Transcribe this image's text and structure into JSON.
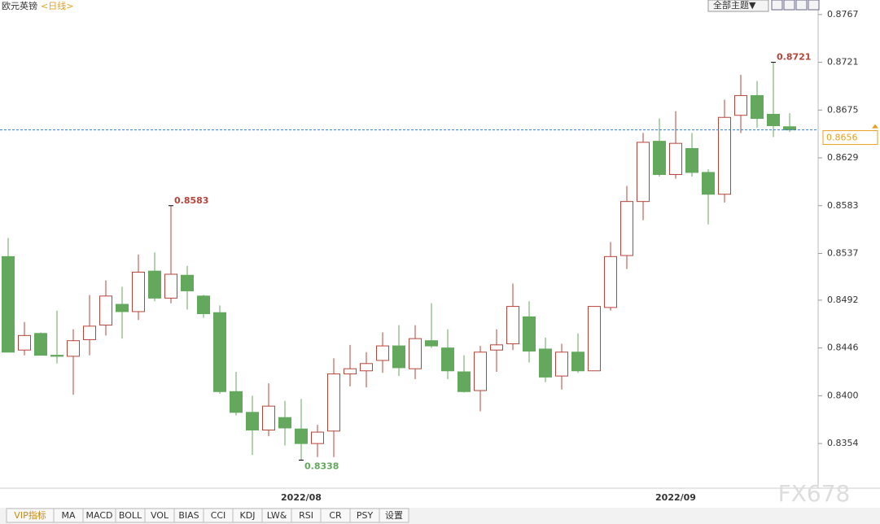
{
  "header": {
    "symbol": "欧元英镑",
    "period": "<日线>",
    "theme_button": "全部主题▼"
  },
  "tabs": [
    "VIP指标",
    "MA",
    "MACD",
    "BOLL",
    "VOL",
    "BIAS",
    "CCI",
    "KDJ",
    "LW&",
    "RSI",
    "CR",
    "PSY",
    "设置"
  ],
  "watermark": "FX678",
  "chart_data": {
    "type": "candlestick",
    "categories": [
      null,
      null,
      null,
      null,
      null,
      null,
      null,
      null,
      null,
      null,
      null,
      null,
      null,
      null,
      null,
      null,
      null,
      null,
      "2022/08",
      null,
      null,
      null,
      null,
      null,
      null,
      null,
      null,
      null,
      null,
      null,
      null,
      null,
      null,
      null,
      null,
      null,
      null,
      null,
      null,
      null,
      null,
      "2022/09",
      null,
      null,
      null,
      null,
      null,
      null,
      null
    ],
    "open": [
      0.8534,
      0.8444,
      0.846,
      0.8439,
      0.8438,
      0.8454,
      0.8468,
      0.8488,
      0.8481,
      0.852,
      0.8494,
      0.8516,
      0.8496,
      0.848,
      0.8404,
      0.8384,
      0.8367,
      0.8379,
      0.8368,
      0.8354,
      0.8366,
      0.8421,
      0.8424,
      0.8434,
      0.8448,
      0.8426,
      0.8453,
      0.8446,
      0.8423,
      0.8405,
      0.8444,
      0.845,
      0.8476,
      0.8445,
      0.8419,
      0.8442,
      0.8424,
      0.8485,
      0.8535,
      0.8587,
      0.8645,
      0.8613,
      0.8638,
      0.8615,
      0.8594,
      0.867,
      0.8689,
      0.8671,
      0.8659
    ],
    "high": [
      0.8552,
      0.8471,
      0.8461,
      0.8482,
      0.8464,
      0.8497,
      0.8511,
      0.8505,
      0.8536,
      0.8538,
      0.8583,
      0.8525,
      0.8497,
      0.8487,
      0.8423,
      0.84,
      0.8412,
      0.8395,
      0.8397,
      0.8372,
      0.8436,
      0.8449,
      0.8442,
      0.8461,
      0.8468,
      0.8468,
      0.8489,
      0.8464,
      0.8439,
      0.8448,
      0.8464,
      0.8508,
      0.8491,
      0.8456,
      0.845,
      0.846,
      0.8486,
      0.8548,
      0.8602,
      0.8653,
      0.8667,
      0.8674,
      0.8653,
      0.8618,
      0.8685,
      0.8709,
      0.8703,
      0.8721,
      0.8672
    ],
    "low": [
      0.8442,
      0.8439,
      0.8439,
      0.8431,
      0.8401,
      0.8439,
      0.8458,
      0.8455,
      0.8473,
      0.8491,
      0.8489,
      0.8483,
      0.8475,
      0.8402,
      0.8381,
      0.8343,
      0.8361,
      0.8352,
      0.8338,
      0.8341,
      0.8341,
      0.8409,
      0.8408,
      0.8422,
      0.8419,
      0.8416,
      0.8446,
      0.8416,
      0.8403,
      0.8385,
      0.8423,
      0.8444,
      0.8432,
      0.8413,
      0.8406,
      0.8422,
      0.8424,
      0.8482,
      0.8522,
      0.8569,
      0.8611,
      0.8609,
      0.8611,
      0.8565,
      0.8586,
      0.8653,
      0.8658,
      0.8649,
      0.8654
    ],
    "close": [
      0.8442,
      0.8458,
      0.8439,
      0.8438,
      0.8453,
      0.8467,
      0.8496,
      0.8481,
      0.8519,
      0.8494,
      0.8517,
      0.8501,
      0.8479,
      0.8404,
      0.8384,
      0.8367,
      0.839,
      0.8369,
      0.8354,
      0.8365,
      0.8421,
      0.8426,
      0.8431,
      0.8448,
      0.8427,
      0.8455,
      0.8448,
      0.8424,
      0.8404,
      0.8442,
      0.8449,
      0.8486,
      0.8443,
      0.8418,
      0.8442,
      0.8424,
      0.8486,
      0.8534,
      0.8587,
      0.8644,
      0.8613,
      0.8643,
      0.8615,
      0.8594,
      0.8668,
      0.8689,
      0.8667,
      0.866,
      0.8656
    ],
    "up_color": "#b5443a",
    "down_color": "#63a85c",
    "annotations": [
      {
        "label": "0.8583",
        "value": 0.8583
      },
      {
        "label": "0.8721",
        "value": 0.8721
      },
      {
        "label": "0.8338",
        "value": 0.8338
      }
    ],
    "last_price": 0.8656,
    "ylim": [
      0.8311,
      0.8781
    ],
    "yticks": [
      0.8767,
      0.8721,
      0.8675,
      0.8629,
      0.8583,
      0.8537,
      0.8492,
      0.8446,
      {
        "value": 0.84,
        "label": "0.8400"
      },
      0.8354
    ]
  }
}
